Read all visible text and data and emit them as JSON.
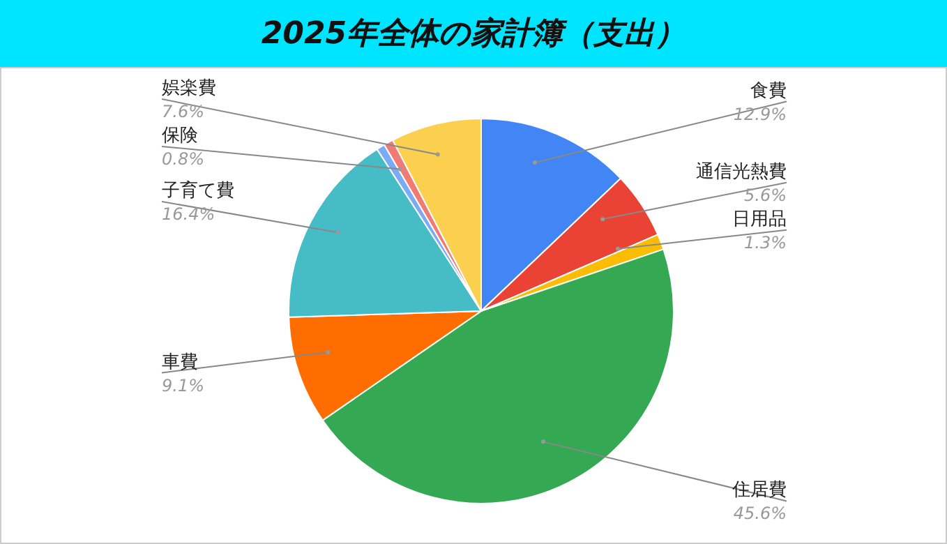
{
  "chart_data": {
    "type": "pie",
    "title": "2025年全体の家計簿（支出）",
    "categories": [
      "食費",
      "通信光熱費",
      "日用品",
      "住居費",
      "車費",
      "子育て費",
      null,
      "保険",
      "娯楽費"
    ],
    "values": [
      12.9,
      5.6,
      1.3,
      45.6,
      9.1,
      16.4,
      0.7,
      0.8,
      7.6
    ],
    "value_labels": [
      "12.9%",
      "5.6%",
      "1.3%",
      "45.6%",
      "9.1%",
      "16.4%",
      null,
      "0.8%",
      "7.6%"
    ],
    "colors": [
      "#4285f4",
      "#ea4335",
      "#fbbc04",
      "#34a853",
      "#ff6d01",
      "#46bdc6",
      "#7baaf7",
      "#f07b72",
      "#fcd04f"
    ],
    "legend": false
  }
}
